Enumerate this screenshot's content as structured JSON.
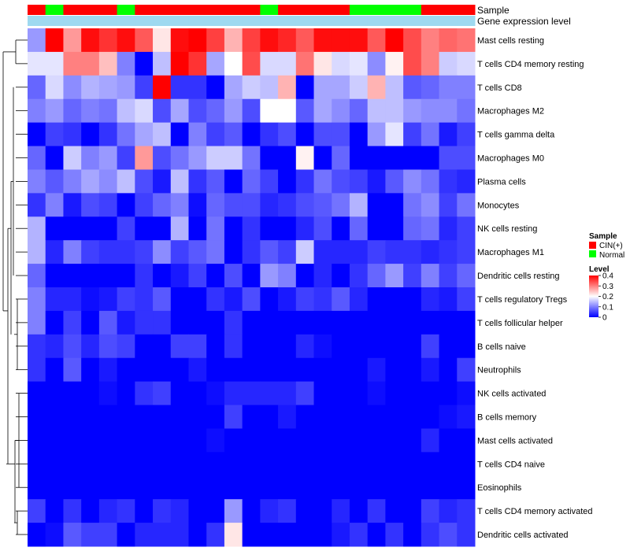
{
  "chart_data": {
    "type": "heatmap",
    "title": "",
    "row_labels": [
      "Mast cells resting",
      "T cells CD4 memory resting",
      "T cells CD8",
      "Macrophages M2",
      "T cells gamma delta",
      "Macrophages M0",
      "Plasma cells",
      "Monocytes",
      "NK cells resting",
      "Macrophages M1",
      "Dendritic cells resting",
      "T cells regulatory  Tregs",
      "T cells follicular helper",
      "B cells naive",
      "Neutrophils",
      "NK cells activated",
      "B cells memory",
      "Mast cells activated",
      "T cells CD4 naive",
      "Eosinophils",
      "T cells CD4 memory activated",
      "Dendritic cells activated"
    ],
    "column_samples": [
      "CIN(+)",
      "Normal",
      "CIN(+)",
      "CIN(+)",
      "CIN(+)",
      "Normal",
      "CIN(+)",
      "CIN(+)",
      "CIN(+)",
      "CIN(+)",
      "CIN(+)",
      "CIN(+)",
      "CIN(+)",
      "Normal",
      "CIN(+)",
      "CIN(+)",
      "CIN(+)",
      "CIN(+)",
      "Normal",
      "Normal",
      "Normal",
      "Normal",
      "CIN(+)",
      "CIN(+)",
      "CIN(+)"
    ],
    "annotation_rows": [
      "Sample",
      "Gene expression level"
    ],
    "values": [
      [
        0.12,
        0.4,
        0.28,
        0.39,
        0.36,
        0.39,
        0.33,
        0.22,
        0.39,
        0.4,
        0.35,
        0.26,
        0.35,
        0.39,
        0.37,
        0.33,
        0.39,
        0.39,
        0.39,
        0.33,
        0.4,
        0.34,
        0.3,
        0.32,
        0.31
      ],
      [
        0.18,
        0.18,
        0.3,
        0.3,
        0.25,
        0.1,
        0.0,
        0.15,
        0.4,
        0.36,
        0.13,
        0.2,
        0.34,
        0.17,
        0.17,
        0.31,
        0.22,
        0.17,
        0.18,
        0.11,
        0.21,
        0.34,
        0.3,
        0.16,
        0.17
      ],
      [
        0.08,
        0.17,
        0.11,
        0.14,
        0.13,
        0.12,
        0.05,
        0.4,
        0.04,
        0.04,
        0.0,
        0.13,
        0.16,
        0.15,
        0.26,
        0.0,
        0.13,
        0.13,
        0.16,
        0.26,
        0.15,
        0.07,
        0.08,
        0.1,
        0.1
      ],
      [
        0.1,
        0.12,
        0.08,
        0.1,
        0.09,
        0.15,
        0.17,
        0.06,
        0.13,
        0.06,
        0.08,
        0.12,
        0.06,
        0.2,
        0.2,
        0.07,
        0.13,
        0.11,
        0.08,
        0.15,
        0.15,
        0.12,
        0.11,
        0.11,
        0.09
      ],
      [
        0.0,
        0.05,
        0.04,
        0.0,
        0.04,
        0.09,
        0.13,
        0.15,
        0.0,
        0.1,
        0.05,
        0.07,
        0.0,
        0.04,
        0.06,
        0.0,
        0.06,
        0.06,
        0.0,
        0.12,
        0.18,
        0.05,
        0.09,
        0.02,
        0.05
      ],
      [
        0.08,
        0.0,
        0.16,
        0.1,
        0.12,
        0.05,
        0.28,
        0.06,
        0.09,
        0.12,
        0.16,
        0.16,
        0.09,
        0.0,
        0.0,
        0.21,
        0.0,
        0.08,
        0.0,
        0.0,
        0.0,
        0.0,
        0.0,
        0.06,
        0.06
      ],
      [
        0.1,
        0.07,
        0.1,
        0.13,
        0.11,
        0.15,
        0.06,
        0.02,
        0.15,
        0.04,
        0.07,
        0.0,
        0.08,
        0.05,
        0.0,
        0.04,
        0.09,
        0.06,
        0.05,
        0.02,
        0.07,
        0.11,
        0.09,
        0.04,
        0.03
      ],
      [
        0.04,
        0.1,
        0.02,
        0.06,
        0.05,
        0.0,
        0.05,
        0.08,
        0.1,
        0.01,
        0.08,
        0.06,
        0.06,
        0.03,
        0.04,
        0.06,
        0.07,
        0.09,
        0.14,
        0.0,
        0.0,
        0.09,
        0.11,
        0.05,
        0.09
      ],
      [
        0.14,
        0.0,
        0.0,
        0.0,
        0.0,
        0.05,
        0.0,
        0.0,
        0.14,
        0.0,
        0.09,
        0.0,
        0.04,
        0.0,
        0.0,
        0.03,
        0.06,
        0.0,
        0.08,
        0.0,
        0.0,
        0.08,
        0.09,
        0.03,
        0.05
      ],
      [
        0.14,
        0.03,
        0.1,
        0.05,
        0.04,
        0.04,
        0.05,
        0.11,
        0.05,
        0.07,
        0.09,
        0.0,
        0.04,
        0.07,
        0.05,
        0.16,
        0.03,
        0.03,
        0.03,
        0.05,
        0.04,
        0.04,
        0.03,
        0.04,
        0.05
      ],
      [
        0.08,
        0.0,
        0.0,
        0.0,
        0.0,
        0.0,
        0.04,
        0.0,
        0.02,
        0.05,
        0.0,
        0.06,
        0.0,
        0.12,
        0.1,
        0.0,
        0.03,
        0.0,
        0.04,
        0.08,
        0.12,
        0.05,
        0.1,
        0.05,
        0.08
      ],
      [
        0.1,
        0.03,
        0.03,
        0.01,
        0.02,
        0.05,
        0.04,
        0.07,
        0.0,
        0.0,
        0.04,
        0.02,
        0.06,
        0.0,
        0.02,
        0.05,
        0.04,
        0.07,
        0.03,
        0.0,
        0.0,
        0.0,
        0.03,
        0.02,
        0.05
      ],
      [
        0.1,
        0.0,
        0.05,
        0.0,
        0.07,
        0.02,
        0.04,
        0.04,
        0.0,
        0.0,
        0.0,
        0.04,
        0.0,
        0.0,
        0.0,
        0.0,
        0.0,
        0.0,
        0.0,
        0.0,
        0.0,
        0.0,
        0.0,
        0.0,
        0.0
      ],
      [
        0.04,
        0.03,
        0.06,
        0.03,
        0.06,
        0.05,
        0.0,
        0.0,
        0.05,
        0.05,
        0.0,
        0.04,
        0.0,
        0.0,
        0.0,
        0.03,
        0.01,
        0.0,
        0.0,
        0.0,
        0.0,
        0.0,
        0.05,
        0.0,
        0.0
      ],
      [
        0.04,
        0.0,
        0.07,
        0.0,
        0.02,
        0.0,
        0.0,
        0.0,
        0.0,
        0.02,
        0.0,
        0.0,
        0.0,
        0.0,
        0.0,
        0.0,
        0.0,
        0.0,
        0.0,
        0.02,
        0.0,
        0.0,
        0.02,
        0.0,
        0.05
      ],
      [
        0.0,
        0.0,
        0.0,
        0.0,
        0.01,
        0.0,
        0.04,
        0.05,
        0.0,
        0.0,
        0.01,
        0.03,
        0.03,
        0.03,
        0.03,
        0.05,
        0.0,
        0.0,
        0.0,
        0.01,
        0.0,
        0.0,
        0.0,
        0.0,
        0.01
      ],
      [
        0.0,
        0.0,
        0.0,
        0.0,
        0.0,
        0.0,
        0.0,
        0.0,
        0.0,
        0.0,
        0.0,
        0.05,
        0.0,
        0.0,
        0.02,
        0.0,
        0.0,
        0.0,
        0.0,
        0.0,
        0.0,
        0.0,
        0.0,
        0.01,
        0.02
      ],
      [
        0.0,
        0.0,
        0.0,
        0.0,
        0.0,
        0.0,
        0.0,
        0.0,
        0.0,
        0.0,
        0.01,
        0.0,
        0.0,
        0.0,
        0.0,
        0.0,
        0.0,
        0.0,
        0.0,
        0.0,
        0.0,
        0.0,
        0.03,
        0.0,
        0.0
      ],
      [
        0.0,
        0.0,
        0.0,
        0.0,
        0.0,
        0.0,
        0.0,
        0.0,
        0.0,
        0.0,
        0.0,
        0.0,
        0.0,
        0.0,
        0.0,
        0.0,
        0.0,
        0.0,
        0.0,
        0.0,
        0.0,
        0.0,
        0.0,
        0.0,
        0.0
      ],
      [
        0.0,
        0.0,
        0.0,
        0.0,
        0.0,
        0.0,
        0.0,
        0.0,
        0.0,
        0.0,
        0.0,
        0.0,
        0.0,
        0.0,
        0.0,
        0.0,
        0.0,
        0.0,
        0.0,
        0.0,
        0.0,
        0.0,
        0.0,
        0.0,
        0.0
      ],
      [
        0.05,
        0.0,
        0.04,
        0.0,
        0.03,
        0.04,
        0.0,
        0.04,
        0.03,
        0.0,
        0.0,
        0.12,
        0.0,
        0.03,
        0.04,
        0.0,
        0.0,
        0.03,
        0.0,
        0.04,
        0.0,
        0.0,
        0.05,
        0.03,
        0.04
      ],
      [
        0.0,
        0.01,
        0.07,
        0.05,
        0.05,
        0.0,
        0.03,
        0.03,
        0.03,
        0.0,
        0.04,
        0.22,
        0.0,
        0.0,
        0.0,
        0.0,
        0.0,
        0.02,
        0.04,
        0.0,
        0.04,
        0.0,
        0.04,
        0.06,
        0.04
      ]
    ],
    "color_scale": {
      "min": 0,
      "mid": 0.2,
      "max": 0.4,
      "low_color": "#0000ff",
      "mid_color": "#ffffff",
      "high_color": "#ff0000"
    },
    "annotation_colors": {
      "CIN(+)": "#ff0000",
      "Normal": "#00ff00",
      "gene_expression_level": "#9fd9f0"
    },
    "legend": {
      "sample_title": "Sample",
      "sample_entries": [
        "CIN(+)",
        "Normal"
      ],
      "level_title": "Level",
      "level_ticks": [
        "0.4",
        "0.3",
        "0.2",
        "0.1",
        "0"
      ]
    },
    "dendrogram": "rows clustered (left side)"
  }
}
